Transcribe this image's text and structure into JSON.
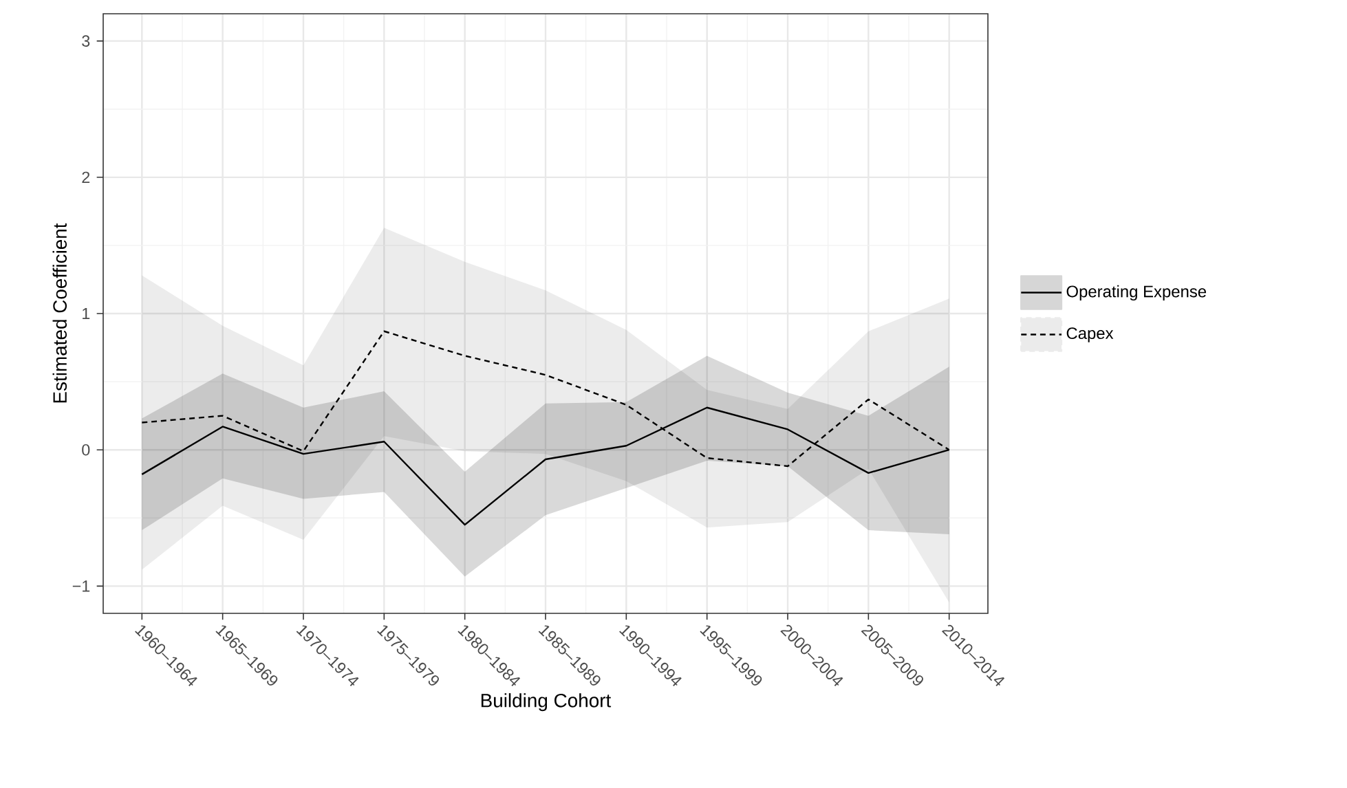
{
  "chart_data": {
    "type": "line",
    "xlabel": "Building Cohort",
    "ylabel": "Estimated Coefficient",
    "categories": [
      "1960–1964",
      "1965–1969",
      "1970–1974",
      "1975–1979",
      "1980–1984",
      "1985–1989",
      "1990–1994",
      "1995–1999",
      "2000–2004",
      "2005–2009",
      "2010–2014"
    ],
    "series": [
      {
        "name": "Operating Expense",
        "color": "#000000",
        "line_style": "solid",
        "values": [
          -0.18,
          0.17,
          -0.03,
          0.06,
          -0.55,
          -0.07,
          0.03,
          0.31,
          0.15,
          -0.17,
          0.0
        ],
        "lower": [
          -0.59,
          -0.21,
          -0.36,
          -0.31,
          -0.93,
          -0.48,
          -0.28,
          -0.08,
          -0.12,
          -0.59,
          -0.62
        ],
        "upper": [
          0.23,
          0.56,
          0.31,
          0.43,
          -0.16,
          0.34,
          0.35,
          0.69,
          0.42,
          0.25,
          0.61
        ]
      },
      {
        "name": "Capex",
        "color": "#000000",
        "line_style": "dashed",
        "values": [
          0.2,
          0.25,
          -0.01,
          0.87,
          0.69,
          0.55,
          0.33,
          -0.06,
          -0.12,
          0.37,
          0.0
        ],
        "lower": [
          -0.88,
          -0.41,
          -0.66,
          0.1,
          -0.01,
          -0.03,
          -0.23,
          -0.57,
          -0.53,
          -0.14,
          -1.12
        ],
        "upper": [
          1.28,
          0.91,
          0.62,
          1.63,
          1.38,
          1.17,
          0.88,
          0.44,
          0.3,
          0.87,
          1.11
        ]
      }
    ],
    "ylim": [
      -1.2,
      3.2
    ],
    "yticks": [
      {
        "value": -1,
        "label": "−1"
      },
      0,
      1,
      2,
      3
    ],
    "grid": true,
    "legend": "right",
    "marker": "none"
  }
}
